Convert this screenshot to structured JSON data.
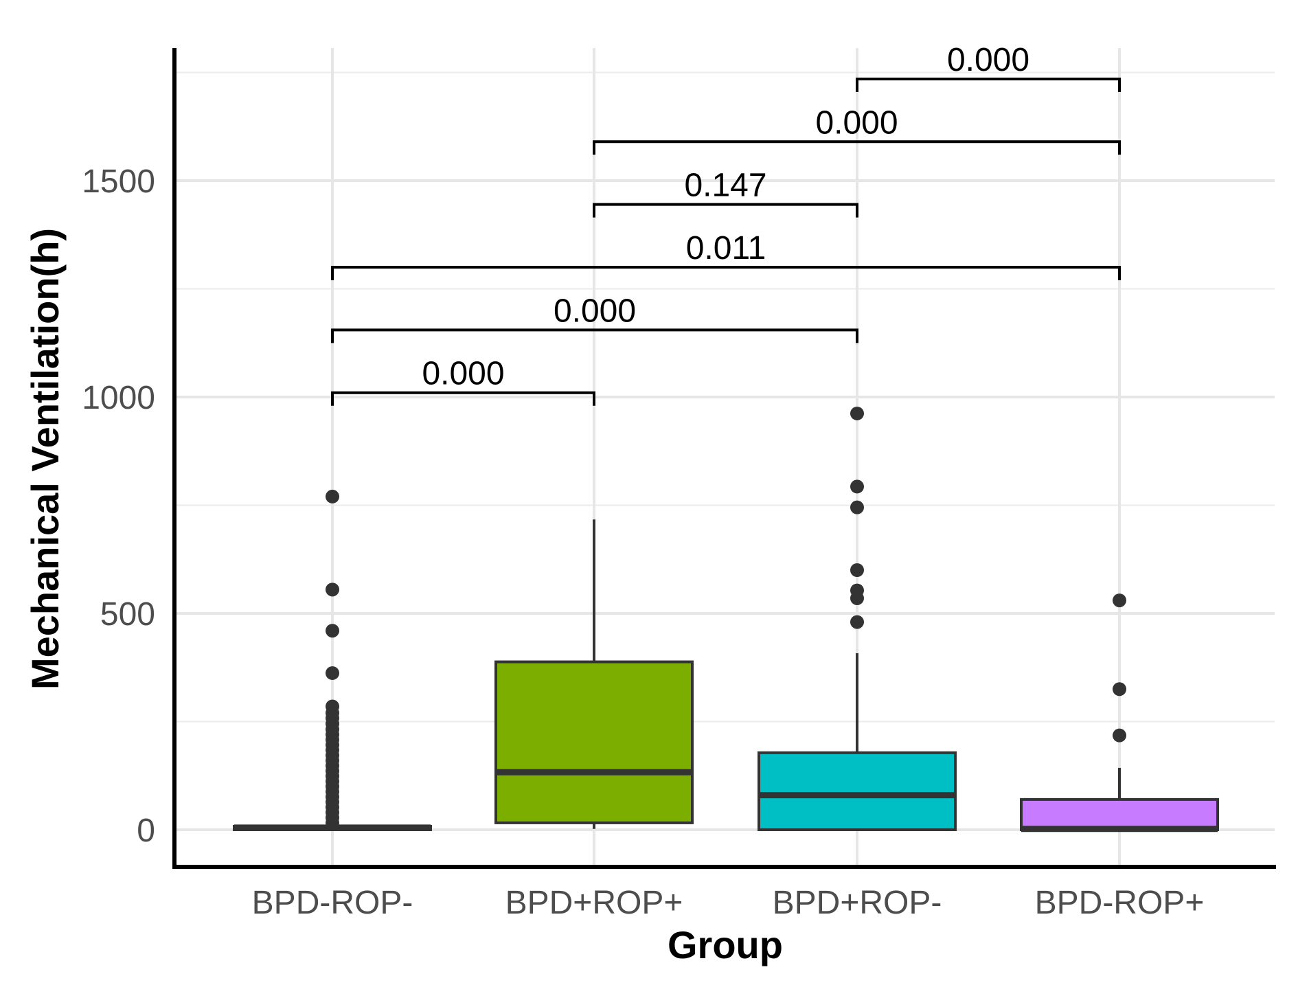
{
  "chart_data": {
    "type": "box",
    "title": "",
    "xlabel": "Group",
    "ylabel": "Mechanical Ventilation(h)",
    "ylim": [
      -80,
      1800
    ],
    "yticks": [
      0,
      500,
      1000,
      1500
    ],
    "ytick_labels": [
      "0",
      "500",
      "1000",
      "1500"
    ],
    "y_minor_gridlines": [
      250,
      750,
      1250,
      1750
    ],
    "grid": true,
    "categories": [
      "BPD-ROP-",
      "BPD+ROP+",
      "BPD+ROP-",
      "BPD-ROP+"
    ],
    "boxes": [
      {
        "group": "BPD-ROP-",
        "color": "#ffffff",
        "q1": 0,
        "median": 5,
        "q3": 8,
        "whisker_low": 0,
        "whisker_high": 8,
        "outliers": [
          770,
          555,
          460,
          362,
          285,
          270,
          258,
          245,
          232,
          220,
          208,
          196,
          184,
          172,
          160,
          148,
          136,
          124,
          112,
          100,
          88,
          76,
          64,
          52,
          40,
          28,
          16
        ]
      },
      {
        "group": "BPD+ROP+",
        "color": "#7cae00",
        "q1": 16,
        "median": 133,
        "q3": 388,
        "whisker_low": 2,
        "whisker_high": 717,
        "outliers": []
      },
      {
        "group": "BPD+ROP-",
        "color": "#00bfc4",
        "q1": 0,
        "median": 80,
        "q3": 178,
        "whisker_low": 0,
        "whisker_high": 408,
        "outliers": [
          962,
          793,
          745,
          600,
          553,
          535,
          480
        ]
      },
      {
        "group": "BPD-ROP+",
        "color": "#c77cff",
        "q1": 0,
        "median": 2,
        "q3": 70,
        "whisker_low": 0,
        "whisker_high": 143,
        "outliers": [
          530,
          325,
          218
        ]
      }
    ],
    "comparisons": [
      {
        "from": "BPD-ROP-",
        "to": "BPD+ROP+",
        "y": 1010,
        "label": "0.000"
      },
      {
        "from": "BPD-ROP-",
        "to": "BPD+ROP-",
        "y": 1155,
        "label": "0.000"
      },
      {
        "from": "BPD-ROP-",
        "to": "BPD-ROP+",
        "y": 1300,
        "label": "0.011"
      },
      {
        "from": "BPD+ROP+",
        "to": "BPD+ROP-",
        "y": 1445,
        "label": "0.147"
      },
      {
        "from": "BPD+ROP+",
        "to": "BPD-ROP+",
        "y": 1590,
        "label": "0.000"
      },
      {
        "from": "BPD+ROP-",
        "to": "BPD-ROP+",
        "y": 1735,
        "label": "0.000"
      }
    ]
  }
}
